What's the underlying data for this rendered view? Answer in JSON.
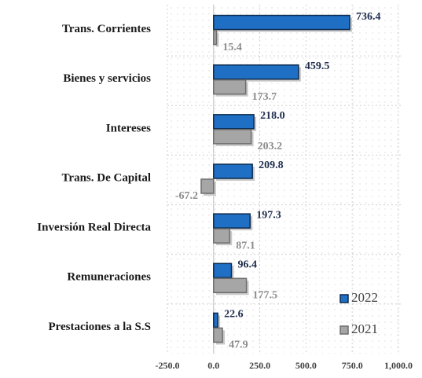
{
  "chart_data": {
    "type": "hbar",
    "categories": [
      "Trans. Corrientes",
      "Bienes y servicios",
      "Intereses",
      "Trans. De Capital",
      "Inversión Real Directa",
      "Remuneraciones",
      "Prestaciones a la S.S"
    ],
    "series": [
      {
        "name": "2022",
        "color": "#1f6fc5",
        "values": [
          736.4,
          459.5,
          218.0,
          209.8,
          197.3,
          96.4,
          22.6
        ],
        "value_labels": [
          "736.4",
          "459.5",
          "218.0",
          "209.8",
          "197.3",
          "96.4",
          "22.6"
        ]
      },
      {
        "name": "2021",
        "color": "#a6a6a6",
        "values": [
          15.4,
          173.7,
          203.2,
          -67.2,
          87.1,
          177.5,
          47.9
        ],
        "value_labels": [
          "15.4",
          "173.7",
          "203.2",
          "-67.2",
          "87.1",
          "177.5",
          "47.9"
        ]
      }
    ],
    "xlim": [
      -250,
      1000
    ],
    "xticks": [
      {
        "value": -250,
        "label": "-250.0"
      },
      {
        "value": 0,
        "label": "0.0"
      },
      {
        "value": 250,
        "label": "250.0"
      },
      {
        "value": 500,
        "label": "500.0"
      },
      {
        "value": 750,
        "label": "750.0"
      },
      {
        "value": 1000,
        "label": "1,000.0"
      }
    ],
    "grid": true,
    "legend": "lower right"
  }
}
